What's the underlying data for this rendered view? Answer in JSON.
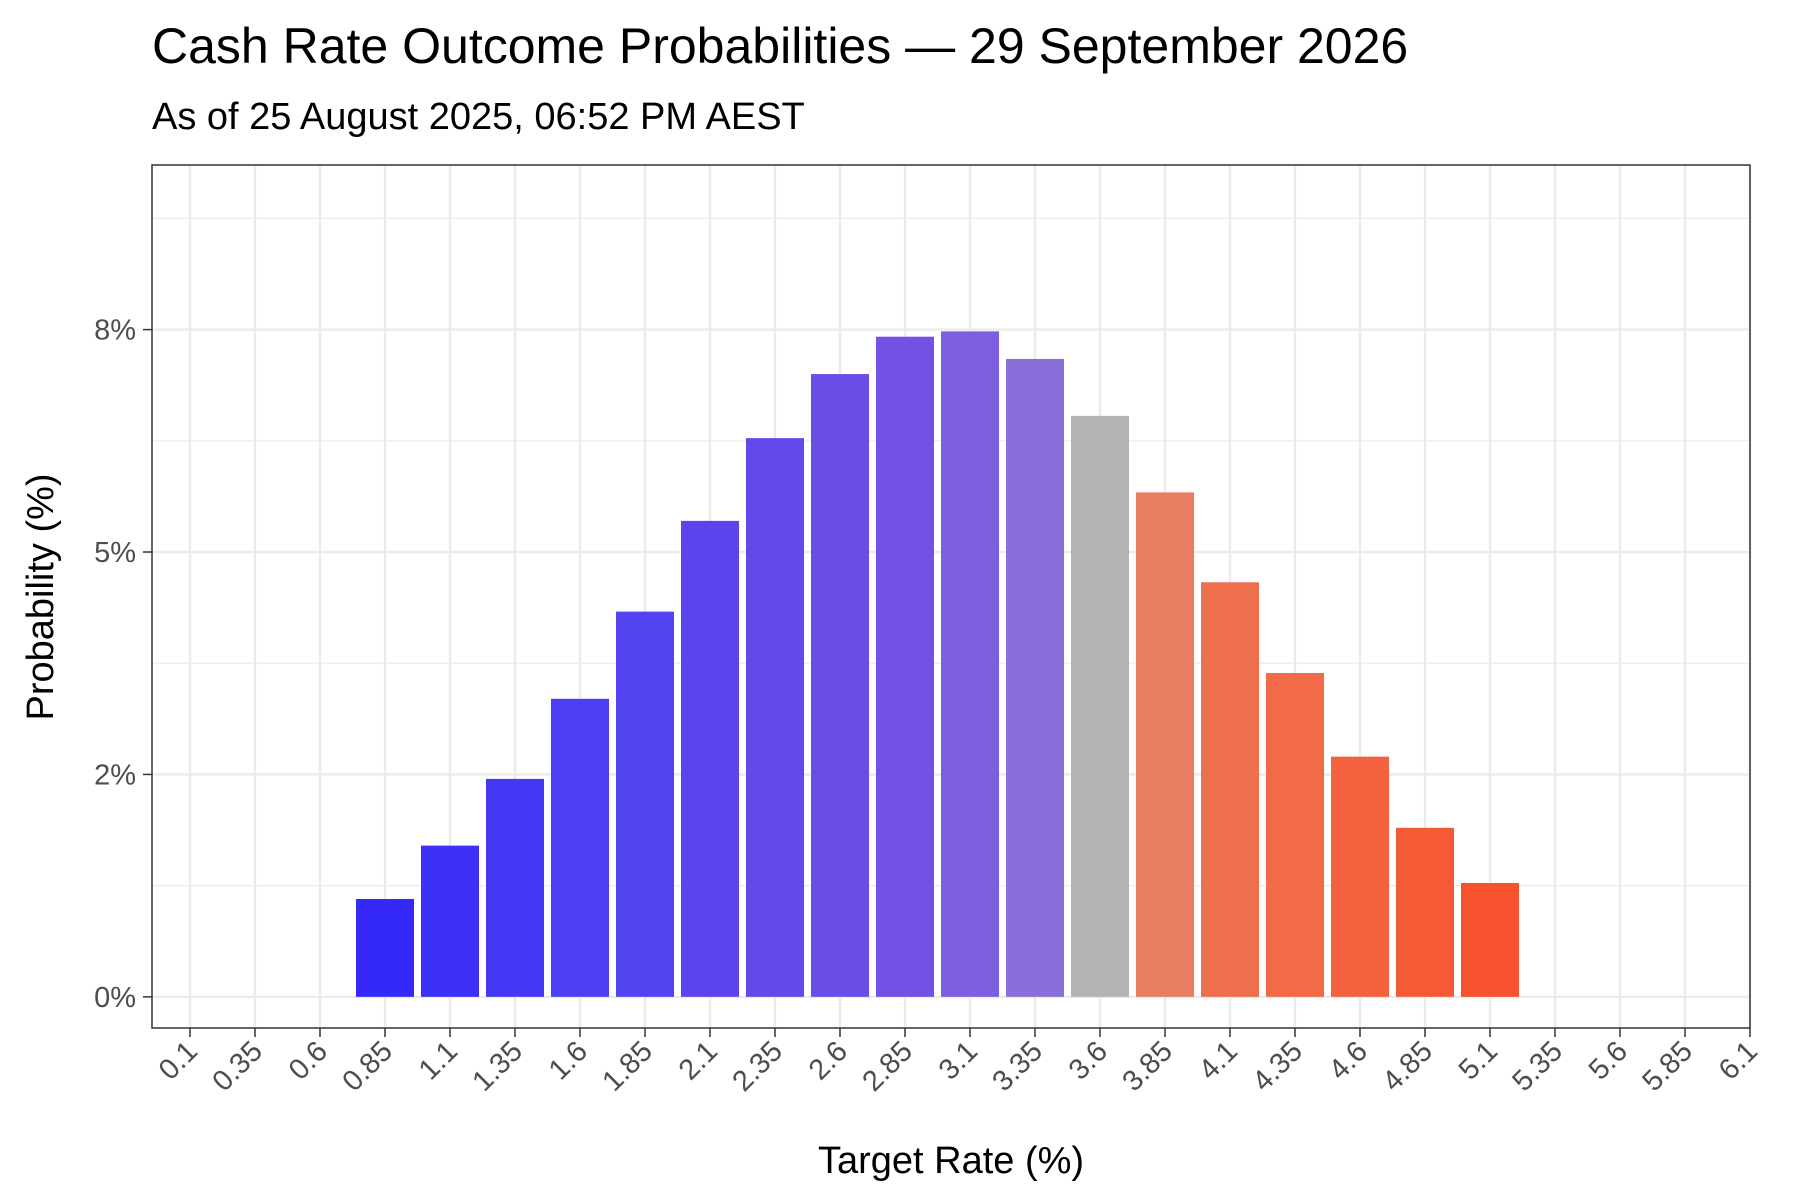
{
  "chart_data": {
    "type": "bar",
    "title": "Cash Rate Outcome Probabilities — 29 September 2026",
    "subtitle": "As of 25 August 2025, 06:52 PM AEST",
    "xlabel": "Target Rate (%)",
    "ylabel": "Probability (%)",
    "categories": [
      "0.1",
      "0.35",
      "0.6",
      "0.85",
      "1.1",
      "1.35",
      "1.6",
      "1.85",
      "2.1",
      "2.35",
      "2.6",
      "2.85",
      "3.1",
      "3.35",
      "3.6",
      "3.85",
      "4.1",
      "4.35",
      "4.6",
      "4.85",
      "5.1",
      "5.35",
      "5.6",
      "5.85",
      "6.1"
    ],
    "values": [
      0,
      0,
      0,
      1.1,
      1.7,
      2.45,
      3.35,
      4.33,
      5.35,
      6.28,
      7.0,
      7.42,
      7.48,
      7.17,
      6.53,
      5.67,
      4.66,
      3.64,
      2.7,
      1.9,
      1.28,
      0,
      0,
      0,
      0
    ],
    "colors": [
      "#3333ff",
      "#3333ff",
      "#3333ff",
      "#3529fa",
      "#3d31f8",
      "#4438f5",
      "#4c3ef3",
      "#5342f0",
      "#5b44ec",
      "#6349ea",
      "#6a4de7",
      "#7351e4",
      "#7c5ee1",
      "#8a6fda",
      "#b3b3b3",
      "#e87e61",
      "#ee6f4d",
      "#f26a48",
      "#f3613f",
      "#f55a36",
      "#f7522e",
      "#f7522e",
      "#f7522e",
      "#f7522e",
      "#f7522e"
    ],
    "ylim": [
      -0.35,
      9.35
    ],
    "y_major_ticks": [
      0,
      2.5,
      5,
      7.5
    ],
    "y_tick_labels": [
      "0%",
      "2%",
      "5%",
      "8%"
    ],
    "y_minor_ticks": [
      1.25,
      3.75,
      6.25,
      8.75
    ],
    "grid": true,
    "legend": "none"
  }
}
